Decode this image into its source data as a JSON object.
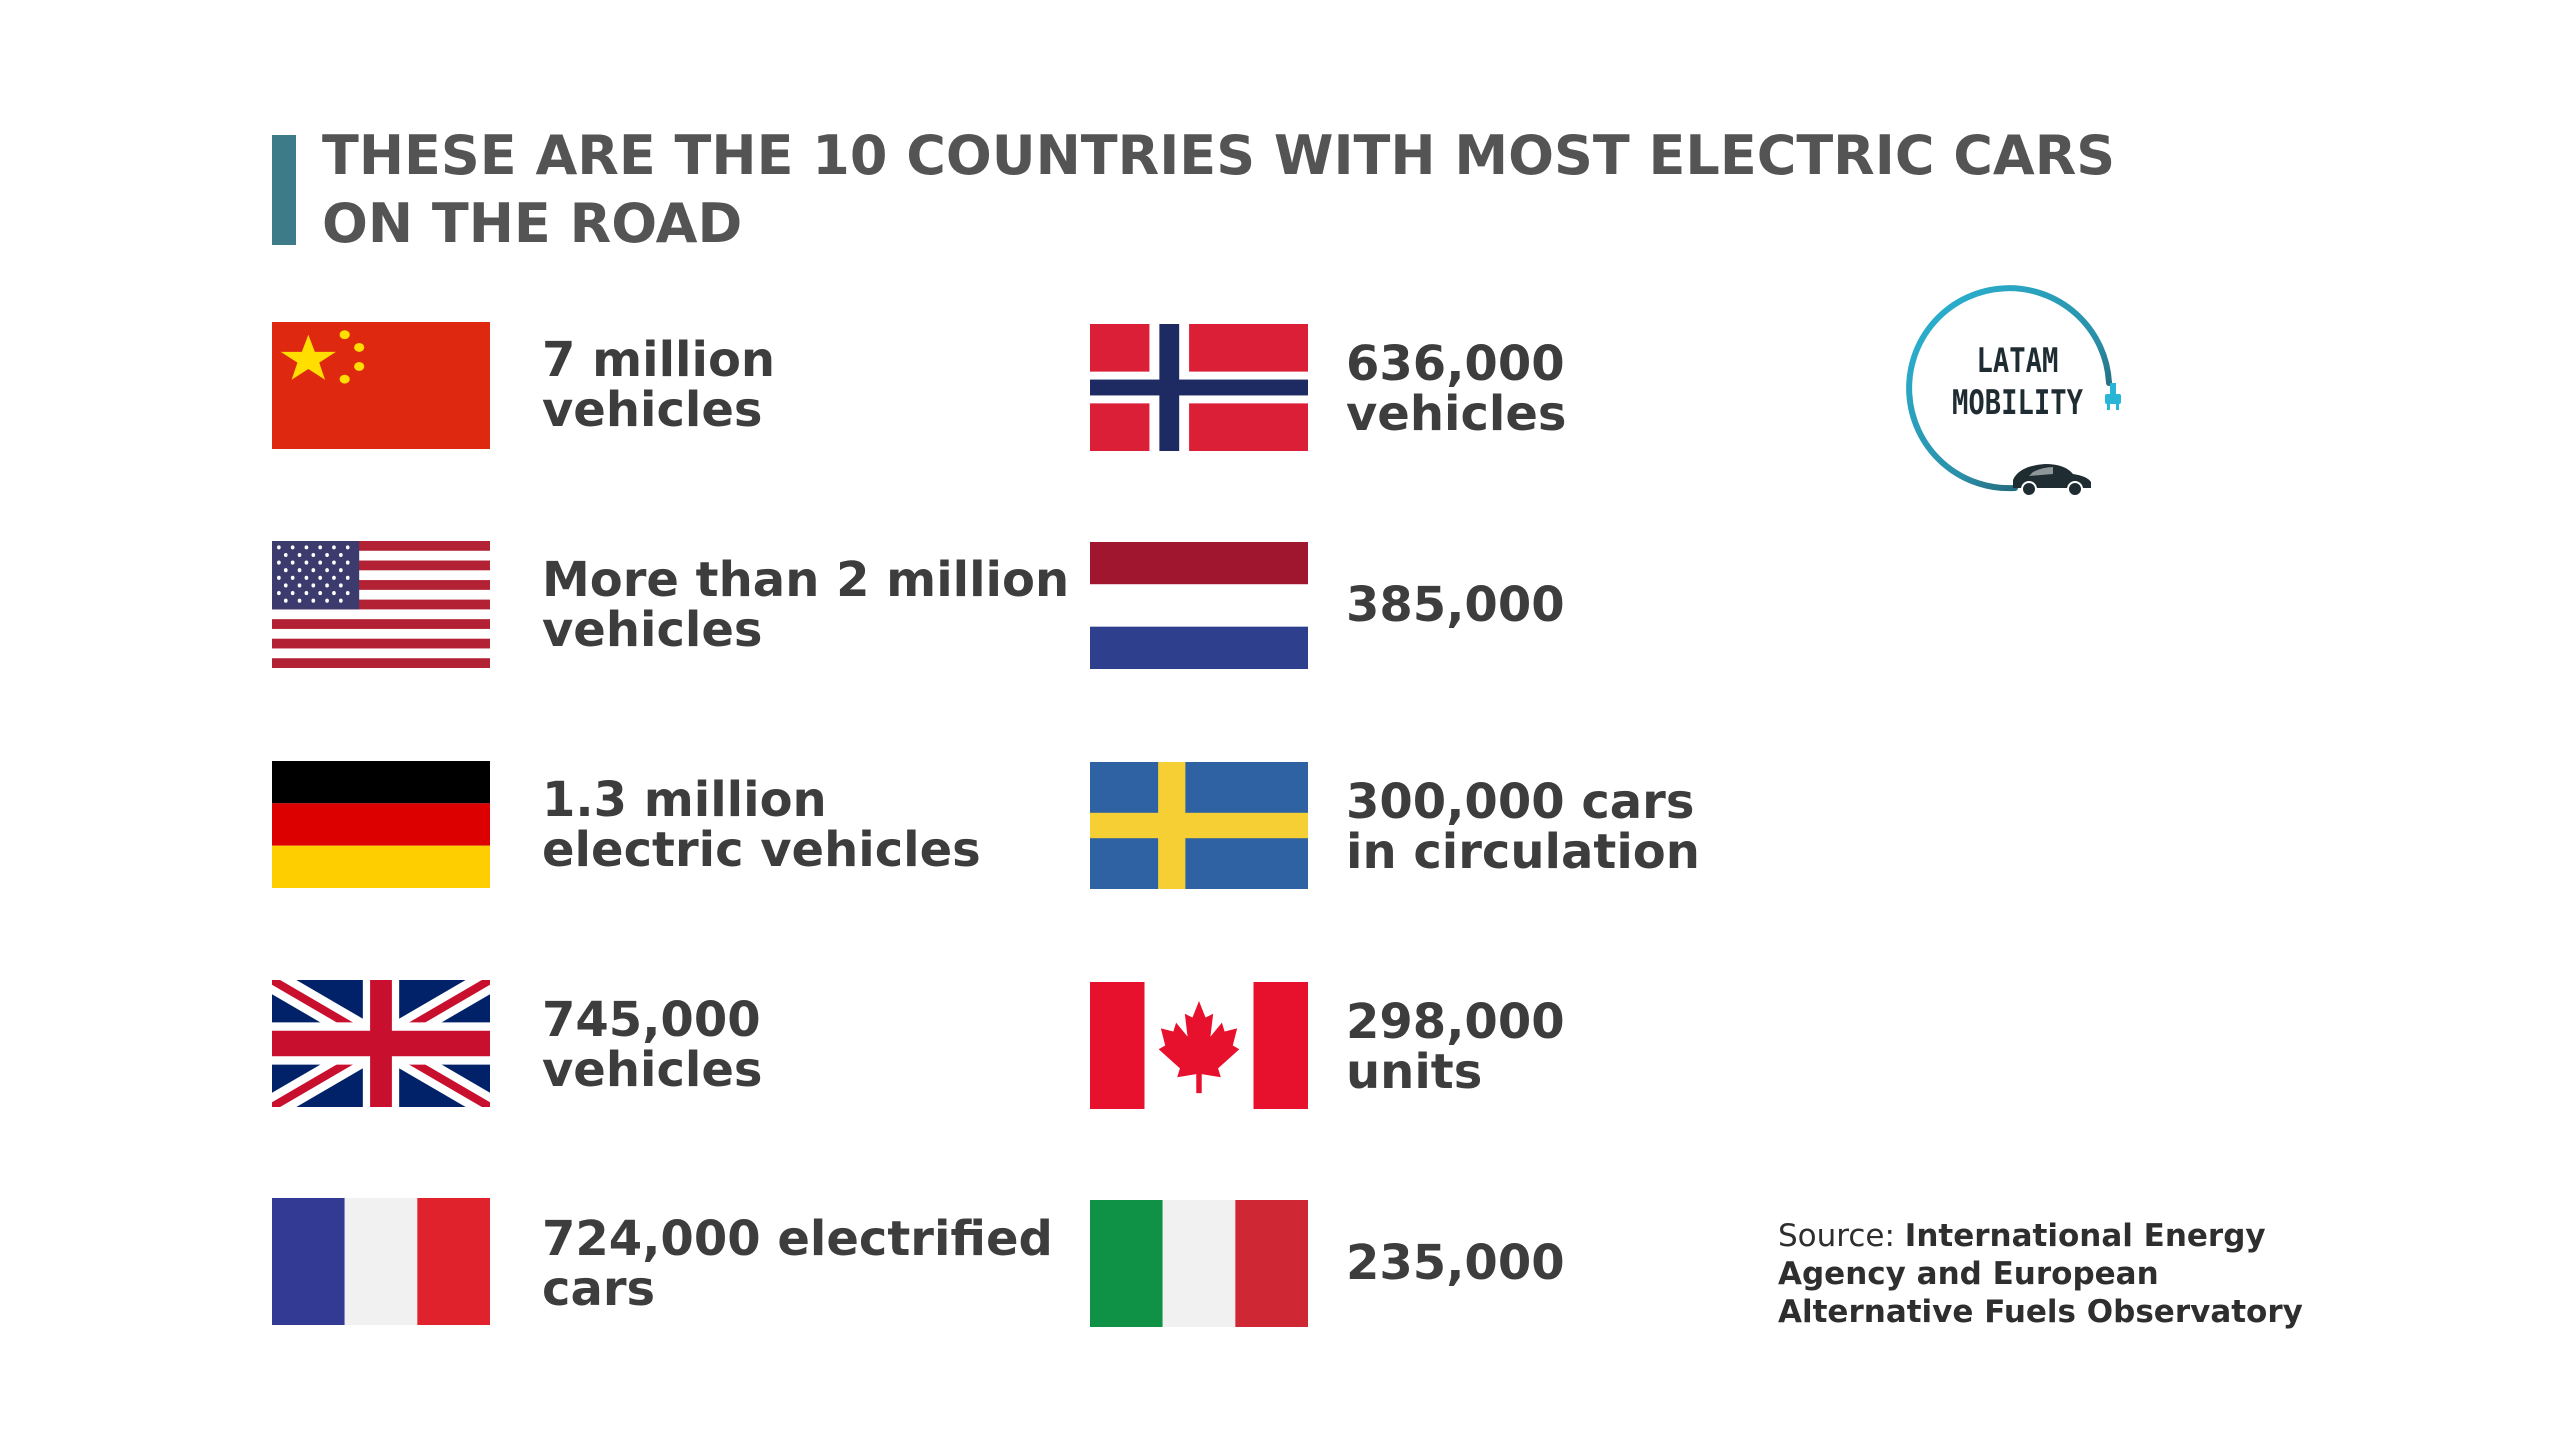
{
  "title": {
    "line1": "THESE ARE THE 10 COUNTRIES WITH MOST ELECTRIC CARS",
    "line2": "ON THE ROAD"
  },
  "countries": [
    {
      "flag": "china-flag",
      "line1": "7 million",
      "line2": "vehicles"
    },
    {
      "flag": "usa-flag",
      "line1": "More than 2 million",
      "line2": "vehicles"
    },
    {
      "flag": "germany-flag",
      "line1": "1.3 million",
      "line2": "electric vehicles"
    },
    {
      "flag": "uk-flag",
      "line1": "745,000",
      "line2": "vehicles"
    },
    {
      "flag": "france-flag",
      "line1": "724,000 electrified",
      "line2": "cars"
    },
    {
      "flag": "norway-flag",
      "line1": "636,000",
      "line2": "vehicles"
    },
    {
      "flag": "netherlands-flag",
      "line1": "385,000",
      "line2": ""
    },
    {
      "flag": "sweden-flag",
      "line1": "300,000 cars",
      "line2": "in circulation"
    },
    {
      "flag": "canada-flag",
      "line1": "298,000",
      "line2": "units"
    },
    {
      "flag": "italy-flag",
      "line1": "235,000",
      "line2": ""
    }
  ],
  "logo": {
    "line1": "LATAM",
    "line2": "MOBILITY",
    "icon": "car-plug-icon"
  },
  "source": {
    "label": "Source: ",
    "text": "International Energy Agency and European Alternative Fuels Observatory"
  },
  "colors": {
    "accent": "#3e7b88",
    "title": "#545454",
    "text": "#3d3d3d"
  }
}
